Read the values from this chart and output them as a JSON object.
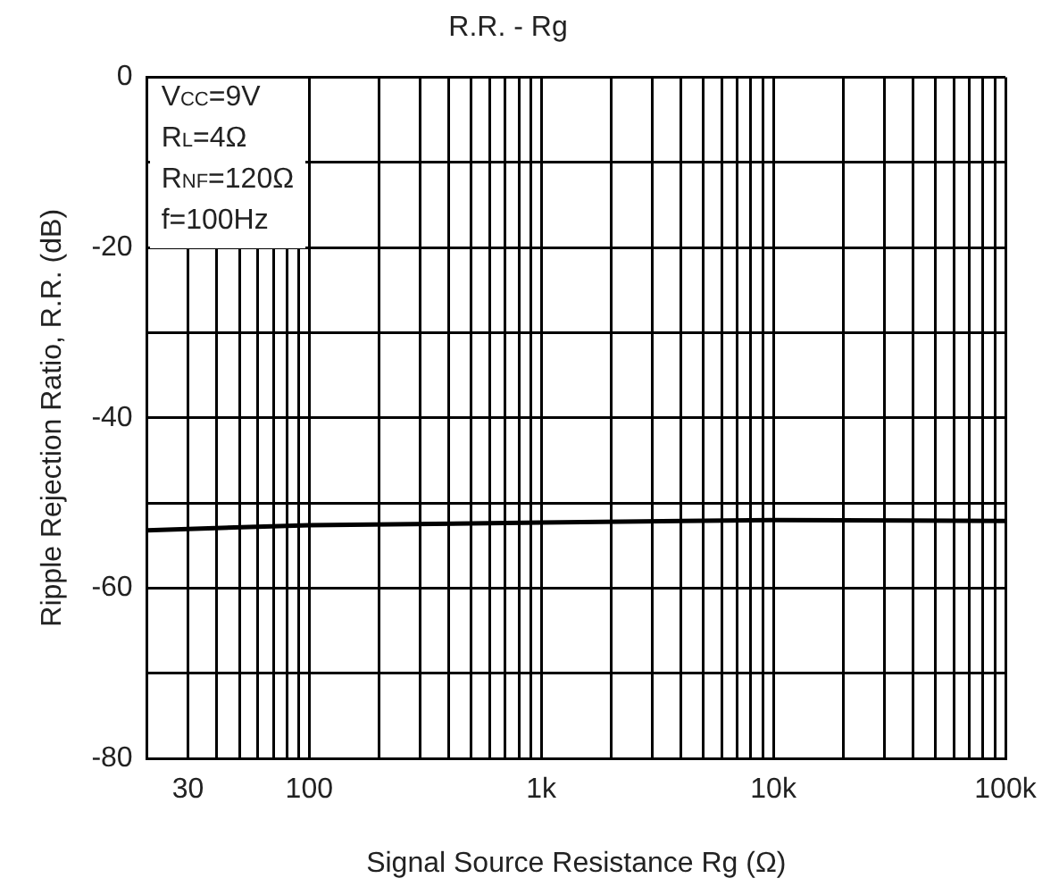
{
  "chart_data": {
    "type": "line",
    "title": "R.R. - Rg",
    "xlabel": "Signal Source Resistance Rg (Ω)",
    "ylabel": "Ripple Rejection Ratio, R.R. (dB)",
    "annotations": [
      "V$_{CC}$=9V",
      "R$_{L}$=4Ω",
      "R$_{NF}$=120Ω",
      "f=100Hz"
    ],
    "log": "x",
    "grid": true,
    "legend": false,
    "marker": "none",
    "line_style": "solid",
    "xlim": [
      20,
      100000
    ],
    "xticks": [
      {
        "value": 20,
        "label": null
      },
      {
        "value": 30,
        "label": "30"
      },
      {
        "value": 40,
        "label": null
      },
      {
        "value": 50,
        "label": null
      },
      {
        "value": 60,
        "label": null
      },
      {
        "value": 70,
        "label": null
      },
      {
        "value": 80,
        "label": null
      },
      {
        "value": 90,
        "label": null
      },
      {
        "value": 100,
        "label": "100"
      },
      {
        "value": 200,
        "label": null
      },
      {
        "value": 300,
        "label": null
      },
      {
        "value": 400,
        "label": null
      },
      {
        "value": 500,
        "label": null
      },
      {
        "value": 600,
        "label": null
      },
      {
        "value": 700,
        "label": null
      },
      {
        "value": 800,
        "label": null
      },
      {
        "value": 900,
        "label": null
      },
      {
        "value": 1000,
        "label": "1k"
      },
      {
        "value": 2000,
        "label": null
      },
      {
        "value": 3000,
        "label": null
      },
      {
        "value": 4000,
        "label": null
      },
      {
        "value": 5000,
        "label": null
      },
      {
        "value": 6000,
        "label": null
      },
      {
        "value": 7000,
        "label": null
      },
      {
        "value": 8000,
        "label": null
      },
      {
        "value": 9000,
        "label": null
      },
      {
        "value": 10000,
        "label": "10k"
      },
      {
        "value": 20000,
        "label": null
      },
      {
        "value": 30000,
        "label": null
      },
      {
        "value": 40000,
        "label": null
      },
      {
        "value": 50000,
        "label": null
      },
      {
        "value": 60000,
        "label": null
      },
      {
        "value": 70000,
        "label": null
      },
      {
        "value": 80000,
        "label": null
      },
      {
        "value": 90000,
        "label": null
      },
      {
        "value": 100000,
        "label": "100k"
      }
    ],
    "ylim": [
      -80,
      0
    ],
    "yticks": [
      {
        "value": -80,
        "label": "-80"
      },
      {
        "value": -70,
        "label": null
      },
      {
        "value": -60,
        "label": "-60"
      },
      {
        "value": -50,
        "label": null
      },
      {
        "value": -40,
        "label": "-40"
      },
      {
        "value": -30,
        "label": null
      },
      {
        "value": -20,
        "label": "-20"
      },
      {
        "value": -10,
        "label": null
      },
      {
        "value": 0,
        "label": "0"
      }
    ],
    "series": [
      {
        "color": "#000000",
        "x": [
          20,
          100,
          1000,
          10000,
          100000
        ],
        "values": [
          -53.2,
          -52.6,
          -52.3,
          -52.0,
          -52.1
        ]
      }
    ]
  }
}
